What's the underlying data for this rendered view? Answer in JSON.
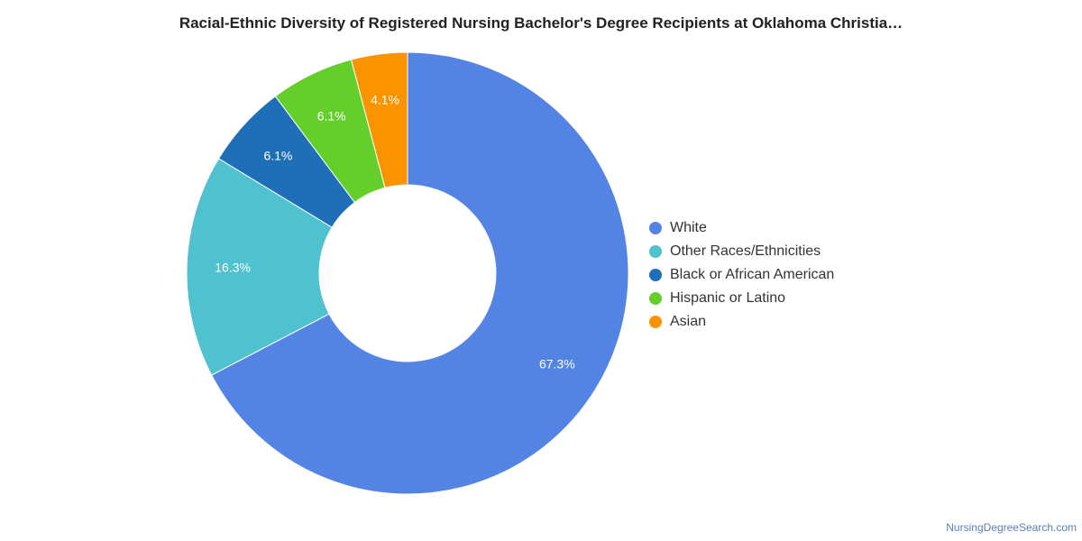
{
  "page": {
    "title": "Racial-Ethnic Diversity of Registered Nursing Bachelor's Degree Recipients at Oklahoma Christia…",
    "credit": "NursingDegreeSearch.com"
  },
  "chart_data": {
    "type": "pie",
    "variant": "donut",
    "title": "Racial-Ethnic Diversity of Registered Nursing Bachelor's Degree Recipients at Oklahoma Christia…",
    "legend_position": "right",
    "slices": [
      {
        "label": "White",
        "value": 67.3,
        "value_label": "67.3%",
        "color": "#5484E3"
      },
      {
        "label": "Other Races/Ethnicities",
        "value": 16.3,
        "value_label": "16.3%",
        "color": "#50C1CF"
      },
      {
        "label": "Black or African American",
        "value": 6.1,
        "value_label": "6.1%",
        "color": "#1E6FB8"
      },
      {
        "label": "Hispanic or Latino",
        "value": 6.1,
        "value_label": "6.1%",
        "color": "#64CF2A"
      },
      {
        "label": "Asian",
        "value": 4.1,
        "value_label": "4.1%",
        "color": "#F99300"
      }
    ]
  }
}
